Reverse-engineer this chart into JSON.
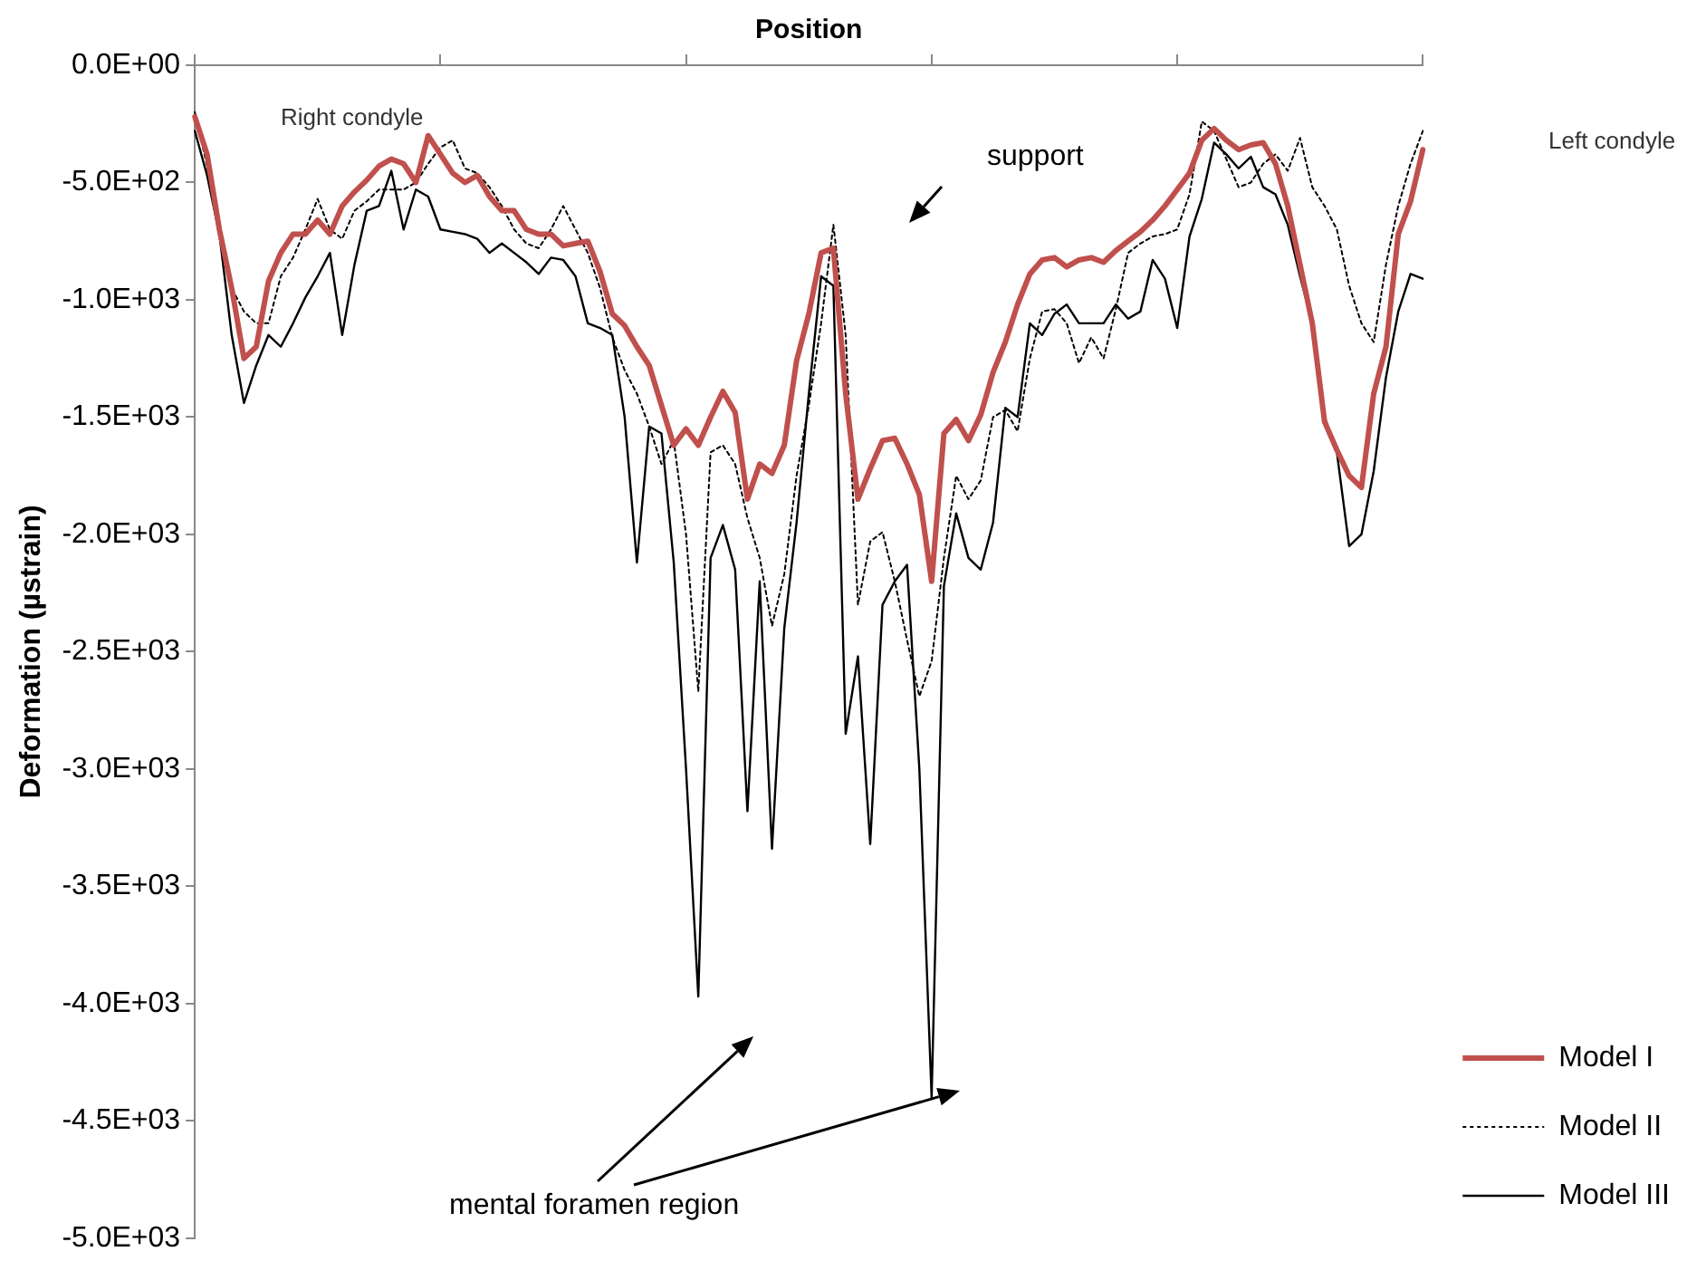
{
  "chart_data": {
    "type": "line",
    "xlabel": "Position",
    "ylabel": "Deformation (µstrain)",
    "categories": [
      null,
      null,
      null,
      null,
      null,
      null,
      null,
      null,
      null,
      null,
      null,
      null,
      null,
      null,
      null,
      null,
      null,
      null,
      null,
      null,
      null,
      null,
      null,
      null,
      null,
      null,
      null,
      null,
      null,
      null,
      null,
      null,
      null,
      null,
      null,
      null,
      null,
      null,
      null,
      null,
      null,
      null,
      null,
      null,
      null,
      null,
      null,
      null,
      null,
      null,
      null,
      null,
      null,
      null,
      null,
      null,
      null,
      null,
      null,
      null,
      null,
      null,
      null,
      null,
      null,
      null,
      null,
      null,
      null,
      null,
      null,
      null,
      null,
      null,
      null,
      null,
      null,
      null,
      null,
      null,
      null,
      null,
      null,
      null,
      null,
      null,
      null,
      null,
      null,
      null,
      null,
      null,
      null,
      null,
      null,
      null,
      null,
      null,
      null,
      null,
      null
    ],
    "series": [
      {
        "name": "Model I",
        "color": "#c0504d",
        "line_style": "solid",
        "values": [
          -220,
          -380,
          -700,
          -950,
          -1250,
          -1200,
          -920,
          -800,
          -720,
          -720,
          -660,
          -720,
          -600,
          -540,
          -490,
          -430,
          -400,
          -420,
          -500,
          -300,
          -380,
          -460,
          -500,
          -470,
          -560,
          -620,
          -620,
          -700,
          -720,
          -720,
          -770,
          -760,
          -750,
          -880,
          -1060,
          -1110,
          -1200,
          -1280,
          -1450,
          -1620,
          -1550,
          -1620,
          -1500,
          -1390,
          -1480,
          -1850,
          -1700,
          -1740,
          -1620,
          -1260,
          -1060,
          -800,
          -780,
          -1400,
          -1850,
          -1720,
          -1600,
          -1590,
          -1700,
          -1830,
          -2200,
          -1570,
          -1510,
          -1600,
          -1490,
          -1310,
          -1180,
          -1020,
          -890,
          -830,
          -820,
          -860,
          -830,
          -820,
          -840,
          -790,
          -750,
          -710,
          -660,
          -600,
          -530,
          -460,
          -320,
          -270,
          -320,
          -360,
          -340,
          -330,
          -420,
          -600,
          -850,
          -1100,
          -1520,
          -1640,
          -1750,
          -1800,
          -1400,
          -1200,
          -720,
          -580,
          -360
        ]
      },
      {
        "name": "Model II",
        "color": "#000000",
        "line_style": "dotted",
        "values": [
          -200,
          -430,
          -730,
          -950,
          -1050,
          -1100,
          -1100,
          -900,
          -820,
          -700,
          -570,
          -700,
          -740,
          -620,
          -580,
          -530,
          -530,
          -530,
          -500,
          -420,
          -350,
          -320,
          -440,
          -460,
          -520,
          -600,
          -700,
          -760,
          -780,
          -700,
          -600,
          -700,
          -800,
          -950,
          -1160,
          -1300,
          -1400,
          -1540,
          -1700,
          -1600,
          -2000,
          -2670,
          -1650,
          -1620,
          -1700,
          -1930,
          -2100,
          -2390,
          -2170,
          -1750,
          -1450,
          -1100,
          -680,
          -1150,
          -2300,
          -2030,
          -1990,
          -2200,
          -2450,
          -2690,
          -2540,
          -2100,
          -1750,
          -1850,
          -1770,
          -1500,
          -1470,
          -1560,
          -1250,
          -1050,
          -1040,
          -1100,
          -1270,
          -1160,
          -1250,
          -1040,
          -800,
          -760,
          -730,
          -720,
          -700,
          -550,
          -240,
          -280,
          -400,
          -520,
          -500,
          -420,
          -380,
          -450,
          -310,
          -520,
          -600,
          -700,
          -940,
          -1100,
          -1180,
          -850,
          -600,
          -420,
          -280
        ]
      },
      {
        "name": "Model III",
        "color": "#000000",
        "line_style": "solid",
        "values": [
          -280,
          -470,
          -720,
          -1150,
          -1440,
          -1280,
          -1150,
          -1200,
          -1100,
          -990,
          -900,
          -800,
          -1150,
          -850,
          -620,
          -600,
          -450,
          -700,
          -530,
          -560,
          -700,
          -710,
          -720,
          -740,
          -800,
          -760,
          -800,
          -840,
          -890,
          -820,
          -830,
          -900,
          -1100,
          -1120,
          -1150,
          -1500,
          -2120,
          -1540,
          -1570,
          -2120,
          -3000,
          -3970,
          -2100,
          -1960,
          -2150,
          -3180,
          -2200,
          -3340,
          -2400,
          -1950,
          -1400,
          -900,
          -940,
          -2850,
          -2520,
          -3320,
          -2300,
          -2200,
          -2130,
          -3000,
          -4400,
          -2220,
          -1910,
          -2100,
          -2150,
          -1950,
          -1460,
          -1500,
          -1100,
          -1150,
          -1060,
          -1020,
          -1100,
          -1100,
          -1100,
          -1020,
          -1080,
          -1050,
          -830,
          -910,
          -1120,
          -730,
          -570,
          -330,
          -380,
          -440,
          -390,
          -520,
          -550,
          -680,
          -900,
          -1100,
          -1500,
          -1650,
          -2050,
          -2000,
          -1730,
          -1330,
          -1050,
          -890,
          -910
        ]
      }
    ],
    "ylim": [
      -5000,
      0
    ],
    "yticks": [
      {
        "value": 0,
        "label": "0.0E+00"
      },
      {
        "value": -500,
        "label": "-5.0E+02"
      },
      {
        "value": -1000,
        "label": "-1.0E+03"
      },
      {
        "value": -1500,
        "label": "-1.5E+03"
      },
      {
        "value": -2000,
        "label": "-2.0E+03"
      },
      {
        "value": -2500,
        "label": "-2.5E+03"
      },
      {
        "value": -3000,
        "label": "-3.0E+03"
      },
      {
        "value": -3500,
        "label": "-3.5E+03"
      },
      {
        "value": -4000,
        "label": "-4.0E+03"
      },
      {
        "value": -4500,
        "label": "-4.5E+03"
      },
      {
        "value": -5000,
        "label": "-5.0E+03"
      }
    ],
    "tick_labels": "y",
    "legend": "bottom right",
    "marker": "none",
    "annotations": [
      "Right condyle",
      "Left condyle",
      "support",
      "mental foramen region"
    ]
  }
}
